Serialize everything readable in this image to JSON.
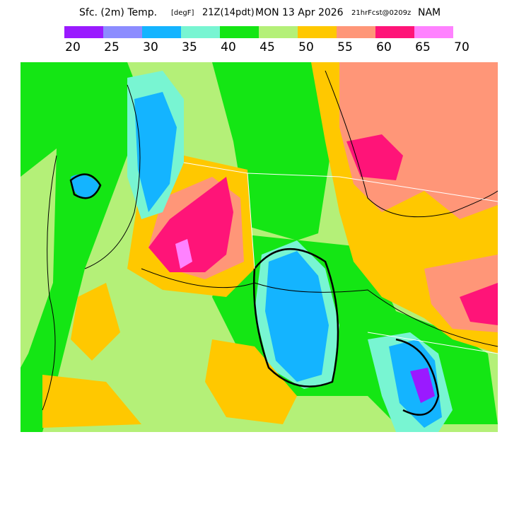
{
  "header": {
    "title_parts": [
      "Sfc. (2m) Temp.",
      "[degF]",
      "21Z(14pdt)",
      "MON 13 Apr 2026",
      "21hrFcst@0209z",
      "NAM"
    ]
  },
  "legend": {
    "colors": [
      "#9a1aff",
      "#8c8cff",
      "#14b4ff",
      "#78f5d2",
      "#14e614",
      "#b4f078",
      "#ffc800",
      "#ff9678",
      "#ff1478",
      "#ff82ff"
    ],
    "labels": [
      "20",
      "25",
      "30",
      "35",
      "40",
      "45",
      "50",
      "55",
      "60",
      "65",
      "70"
    ]
  }
}
